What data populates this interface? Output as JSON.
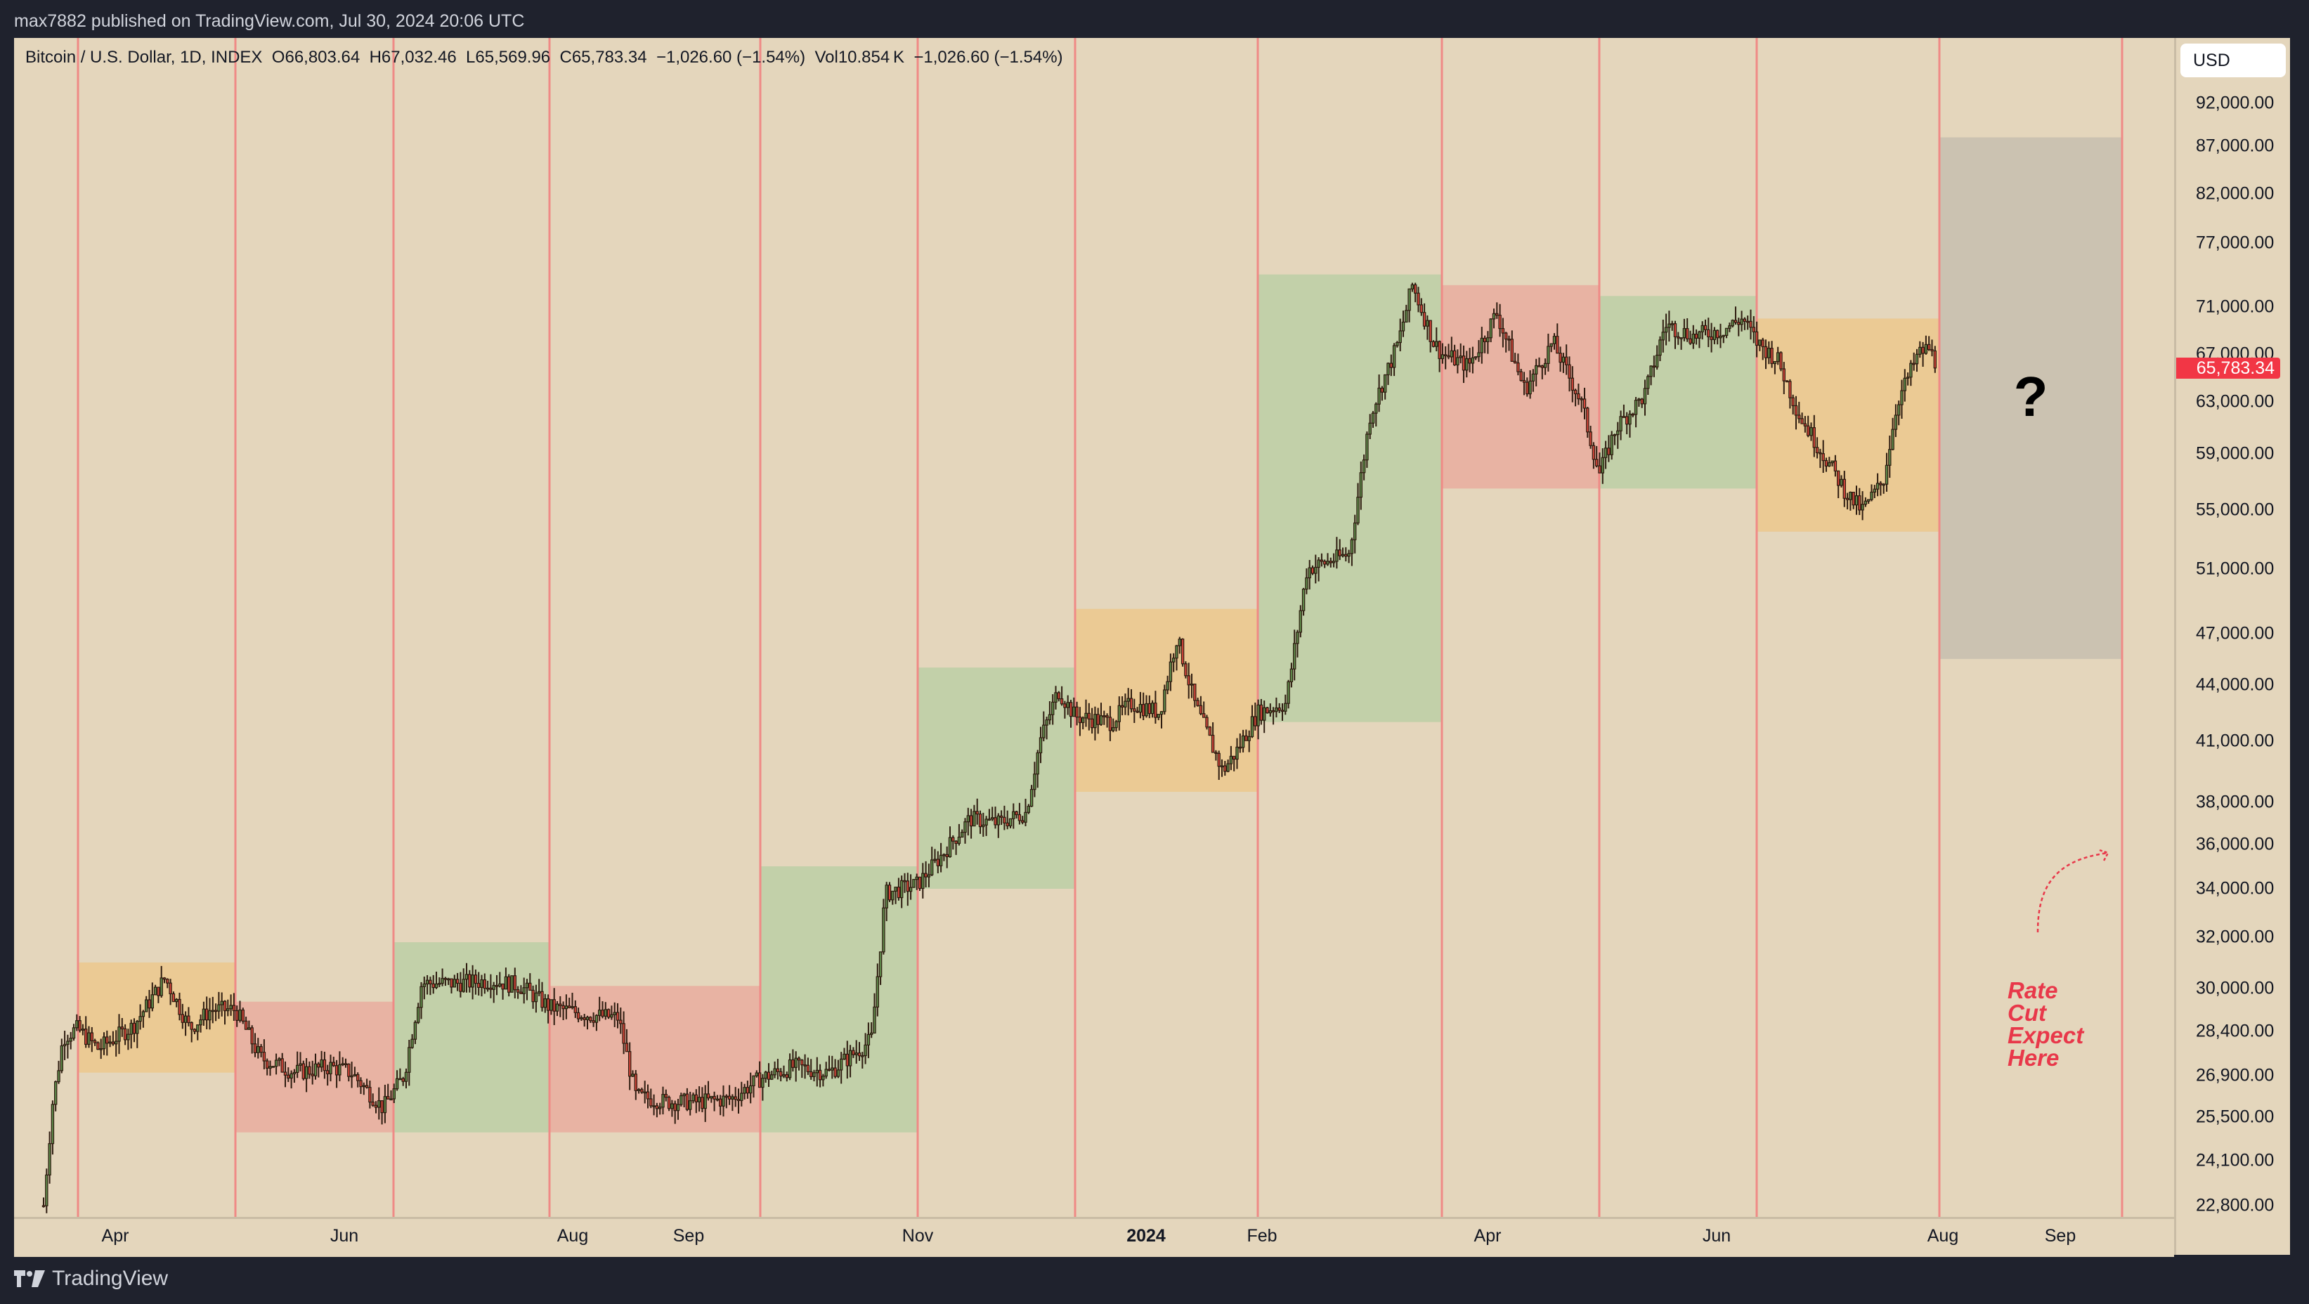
{
  "header": {
    "published": "max7882 published on TradingView.com, Jul 30, 2024 20:06 UTC"
  },
  "legend": {
    "symbol": "Bitcoin / U.S. Dollar, 1D, INDEX",
    "open": "O66,803.64",
    "high": "H67,032.46",
    "low": "L65,569.96",
    "close": "C65,783.34",
    "change": "−1,026.60 (−1.54%)",
    "volume": "Vol10.854 K",
    "volume_change": "−1,026.60 (−1.54%)"
  },
  "price_axis": {
    "currency_button": "USD",
    "last_price": "65,783.34",
    "last_price_value": 65783.34,
    "ticks": [
      {
        "label": "92,000.00",
        "y": 147
      },
      {
        "label": "87,000.00",
        "y": 208
      },
      {
        "label": "82,000.00",
        "y": 276
      },
      {
        "label": "77,000.00",
        "y": 346
      },
      {
        "label": "71,000.00",
        "y": 437
      },
      {
        "label": "67,000.00",
        "y": 504
      },
      {
        "label": "63,000.00",
        "y": 572
      },
      {
        "label": "59,000.00",
        "y": 646
      },
      {
        "label": "55,000.00",
        "y": 726
      },
      {
        "label": "51,000.00",
        "y": 810
      },
      {
        "label": "47,000.00",
        "y": 902
      },
      {
        "label": "44,000.00",
        "y": 975
      },
      {
        "label": "41,000.00",
        "y": 1055
      },
      {
        "label": "38,000.00",
        "y": 1142
      },
      {
        "label": "36,000.00",
        "y": 1202
      },
      {
        "label": "34,000.00",
        "y": 1265
      },
      {
        "label": "32,000.00",
        "y": 1334
      },
      {
        "label": "30,000.00",
        "y": 1407
      },
      {
        "label": "28,400.00",
        "y": 1468
      },
      {
        "label": "26,900.00",
        "y": 1531
      },
      {
        "label": "25,500.00",
        "y": 1590
      },
      {
        "label": "24,100.00",
        "y": 1652
      },
      {
        "label": "22,800.00",
        "y": 1716
      }
    ]
  },
  "time_axis": {
    "labels": [
      {
        "label": "Apr",
        "x": 164,
        "bold": false
      },
      {
        "label": "Jun",
        "x": 490,
        "bold": false
      },
      {
        "label": "Aug",
        "x": 815,
        "bold": false
      },
      {
        "label": "Sep",
        "x": 980,
        "bold": false
      },
      {
        "label": "Nov",
        "x": 1306,
        "bold": false
      },
      {
        "label": "2024",
        "x": 1631,
        "bold": true
      },
      {
        "label": "Feb",
        "x": 1796,
        "bold": false
      },
      {
        "label": "Apr",
        "x": 2117,
        "bold": false
      },
      {
        "label": "Jun",
        "x": 2443,
        "bold": false
      },
      {
        "label": "Aug",
        "x": 2765,
        "bold": false
      },
      {
        "label": "Sep",
        "x": 2932,
        "bold": false
      }
    ]
  },
  "annotations": {
    "question_mark": "?",
    "rate_cut_note": [
      "Rate",
      "Cut",
      "Expect",
      "Here"
    ]
  },
  "colors": {
    "background": "#e4d6bc",
    "divider": "#ef8a86",
    "zone_green": "#c2d0a9",
    "zone_red": "#e8b3a3",
    "zone_orange": "#ebca94",
    "zone_gray": "#cbc2b1",
    "candle_up": "#5e8a4a",
    "candle_down": "#d2453a",
    "candle_outline": "#2e1c10",
    "note": "#e8384a",
    "last_price": "#f23645"
  },
  "footer": {
    "brand": "TradingView"
  },
  "chart_data": {
    "type": "candlestick",
    "title": "Bitcoin / U.S. Dollar, 1D, INDEX",
    "xlabel": "",
    "ylabel": "USD",
    "ylim": [
      22800,
      92000
    ],
    "y_scale": "log",
    "x_range": [
      "2023-03",
      "2024-09"
    ],
    "vertical_dividers_months": [
      "2023-03-10",
      "2023-05-01",
      "2023-06-20",
      "2023-08-10",
      "2023-10-15",
      "2023-12-05",
      "2024-01-25",
      "2024-03-20",
      "2024-04-30",
      "2024-06-15",
      "2024-08-01",
      "2024-09-25"
    ],
    "zones": [
      {
        "period": "Mar–May 2023",
        "color": "orange",
        "low": 27000,
        "high": 31000
      },
      {
        "period": "May–Jun 2023",
        "color": "red",
        "low": 25000,
        "high": 29500
      },
      {
        "period": "Jun–Aug 2023",
        "color": "green",
        "low": 25000,
        "high": 31800
      },
      {
        "period": "Aug–Oct 2023",
        "color": "red",
        "low": 25000,
        "high": 30100
      },
      {
        "period": "Oct–Nov 2023",
        "color": "green",
        "low": 25000,
        "high": 35000
      },
      {
        "period": "Nov–Dec 2023",
        "color": "green",
        "low": 34000,
        "high": 45000
      },
      {
        "period": "Dec 2023–Jan 2024",
        "color": "orange",
        "low": 38500,
        "high": 48500
      },
      {
        "period": "Feb–Mar 2024",
        "color": "green",
        "low": 42000,
        "high": 74000
      },
      {
        "period": "Mar–Apr 2024",
        "color": "red",
        "low": 56500,
        "high": 73000
      },
      {
        "period": "May–Jun 2024",
        "color": "green",
        "low": 56500,
        "high": 72000
      },
      {
        "period": "Jun–Jul 2024",
        "color": "orange",
        "low": 53500,
        "high": 70000
      },
      {
        "period": "Aug–Sep 2024 (projection)",
        "color": "gray",
        "low": 45500,
        "high": 88000
      }
    ],
    "approx_closes": [
      {
        "date": "2023-03-01",
        "close": 22800
      },
      {
        "date": "2023-03-20",
        "close": 28000
      },
      {
        "date": "2023-04-14",
        "close": 30400
      },
      {
        "date": "2023-05-01",
        "close": 28500
      },
      {
        "date": "2023-06-15",
        "close": 25500
      },
      {
        "date": "2023-06-25",
        "close": 30500
      },
      {
        "date": "2023-08-15",
        "close": 29000
      },
      {
        "date": "2023-08-20",
        "close": 26000
      },
      {
        "date": "2023-10-15",
        "close": 27000
      },
      {
        "date": "2023-10-25",
        "close": 34500
      },
      {
        "date": "2023-12-05",
        "close": 43500
      },
      {
        "date": "2024-01-11",
        "close": 47000
      },
      {
        "date": "2024-01-23",
        "close": 39500
      },
      {
        "date": "2024-03-14",
        "close": 73000
      },
      {
        "date": "2024-04-08",
        "close": 71500
      },
      {
        "date": "2024-05-01",
        "close": 57000
      },
      {
        "date": "2024-06-05",
        "close": 71000
      },
      {
        "date": "2024-07-05",
        "close": 54500
      },
      {
        "date": "2024-07-29",
        "close": 68000
      },
      {
        "date": "2024-07-30",
        "close": 65783.34
      }
    ],
    "last": {
      "open": 66803.64,
      "high": 67032.46,
      "low": 65569.96,
      "close": 65783.34,
      "change": -1026.6,
      "change_pct": -1.54,
      "volume": "10.854K"
    }
  }
}
